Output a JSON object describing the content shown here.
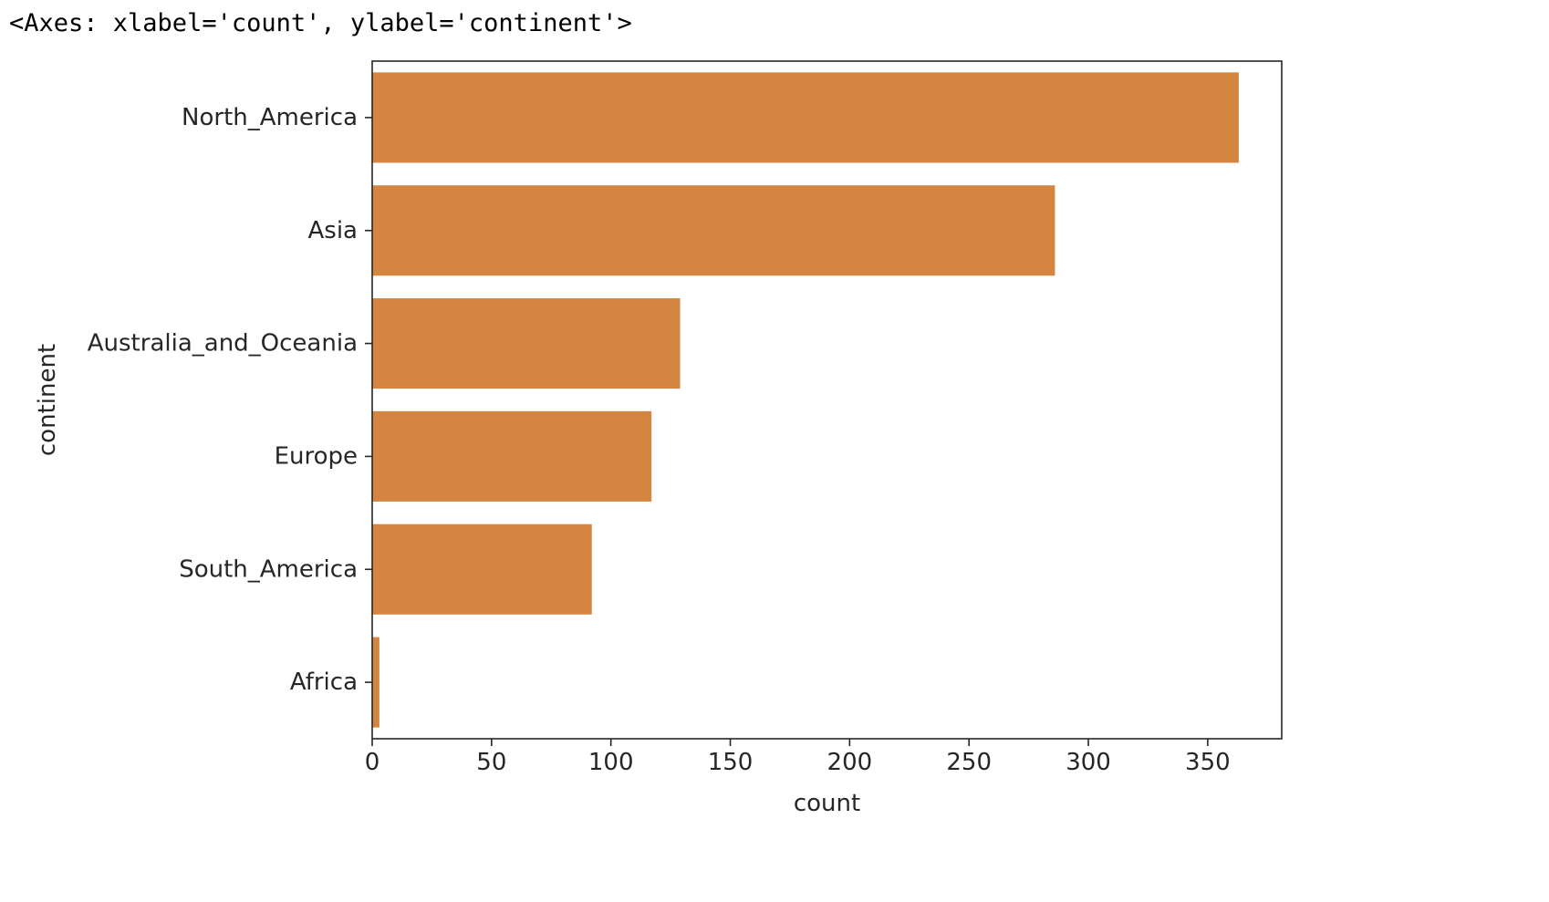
{
  "output": {
    "repr": "<Axes: xlabel='count', ylabel='continent'>"
  },
  "chart_data": {
    "type": "bar",
    "orientation": "horizontal",
    "categories": [
      "North_America",
      "Asia",
      "Australia_and_Oceania",
      "Europe",
      "South_America",
      "Africa"
    ],
    "values": [
      363,
      286,
      129,
      117,
      92,
      3
    ],
    "xlabel": "count",
    "ylabel": "continent",
    "xlim": [
      0,
      381
    ],
    "xticks": [
      0,
      50,
      100,
      150,
      200,
      250,
      300,
      350
    ],
    "xtick_labels": [
      "0",
      "50",
      "100",
      "150",
      "200",
      "250",
      "300",
      "350"
    ],
    "grid": false,
    "legend": "none",
    "bar_color": "#d48640",
    "spine_color": "#262626"
  }
}
